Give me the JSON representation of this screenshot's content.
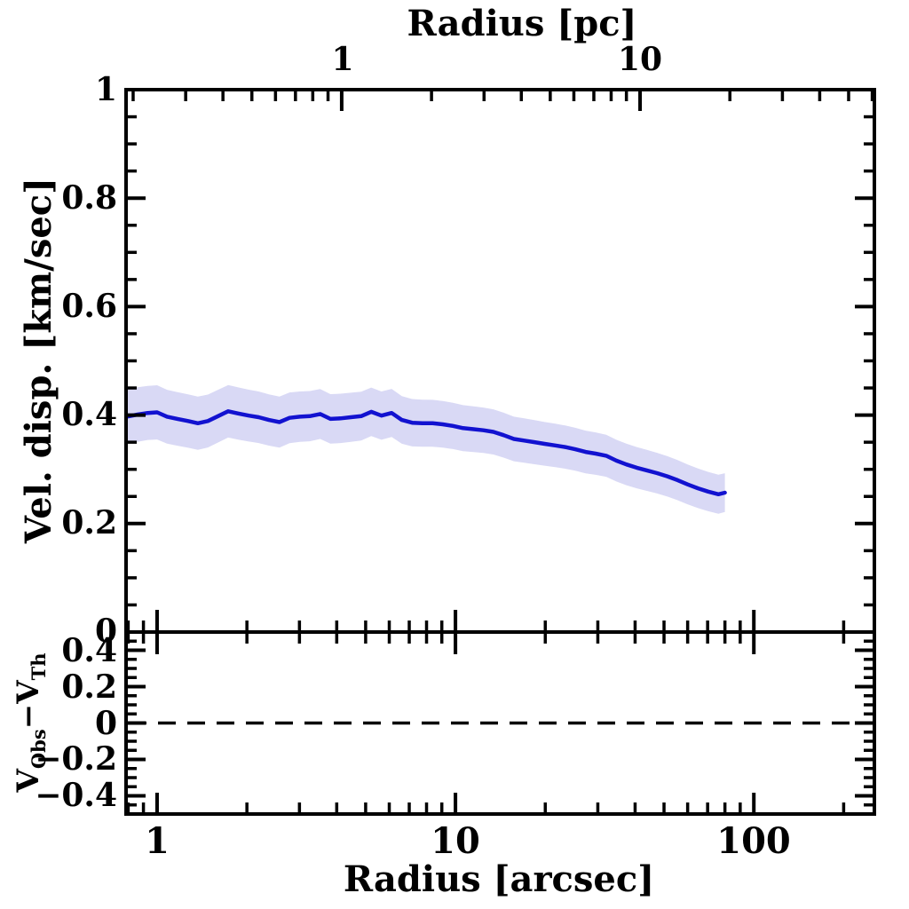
{
  "figure": {
    "background": "#ffffff",
    "frame_color": "#000000",
    "accent_line_color": "#1212d0",
    "band_color": "#d9d9f5",
    "zero_line_color": "#000000"
  },
  "top_axis": {
    "title": "Radius [pc]",
    "tick_labels": [
      "1",
      "10"
    ]
  },
  "bottom_axis": {
    "title": "Radius [arcsec]",
    "tick_labels": [
      "1",
      "10",
      "100"
    ]
  },
  "left_axis_top_panel": {
    "title": "Vel. disp. [km/sec]",
    "tick_labels": [
      "1",
      "0.8",
      "0.6",
      "0.4",
      "0.2",
      "0"
    ]
  },
  "left_axis_bottom_panel": {
    "title_parts": {
      "v1": "V",
      "sub1": "Obs",
      "minus": "−",
      "v2": "V",
      "sub2": "Th"
    },
    "tick_labels": [
      "0.4",
      "0.2",
      "0",
      "−0.2",
      "−0.4"
    ]
  },
  "chart_data": {
    "type": "line",
    "title": "",
    "xlabel_bottom": "Radius [arcsec]",
    "xlabel_top": "Radius [pc]",
    "x_scale": "log",
    "xlim_arcsec": [
      0.787,
      253.5
    ],
    "arcsec_per_pc": 4.156,
    "x_major_ticks_arcsec": [
      1,
      10,
      100
    ],
    "x_minor_ticks_arcsec": [
      0.8,
      0.9,
      2,
      3,
      4,
      5,
      6,
      7,
      8,
      9,
      20,
      30,
      40,
      50,
      60,
      70,
      80,
      90,
      200
    ],
    "x_major_ticks_pc": [
      1,
      10
    ],
    "x_minor_ticks_pc": [
      0.2,
      0.3,
      0.4,
      0.5,
      0.6,
      0.7,
      0.8,
      0.9,
      2,
      3,
      4,
      5,
      6,
      7,
      8,
      9,
      20,
      30,
      40,
      50,
      60
    ],
    "top_panel": {
      "ylabel": "Vel. disp. [km/sec]",
      "ylim": [
        0,
        1
      ],
      "y_major_ticks": [
        0.2,
        0.4,
        0.6,
        0.8
      ],
      "y_minor_step": 0.05,
      "grid": false,
      "legend": "none",
      "series": [
        {
          "name": "velocity-dispersion-profile",
          "style": "solid line with shaded 1-sigma band",
          "color": "#1212d0",
          "band_color": "#d9d9f5",
          "r_arcsec": [
            0.79,
            0.86,
            0.93,
            1.0,
            1.08,
            1.17,
            1.27,
            1.37,
            1.48,
            1.6,
            1.73,
            1.87,
            2.03,
            2.19,
            2.37,
            2.57,
            2.78,
            3.01,
            3.25,
            3.52,
            3.81,
            4.12,
            4.46,
            4.83,
            5.22,
            5.65,
            6.11,
            6.61,
            7.16,
            7.74,
            8.38,
            9.07,
            9.81,
            10.6,
            11.5,
            12.4,
            13.4,
            14.5,
            15.7,
            17.0,
            18.4,
            19.9,
            21.6,
            23.3,
            25.2,
            27.3,
            29.5,
            32.0,
            34.6,
            37.4,
            40.5,
            43.8,
            47.4,
            51.3,
            55.5,
            60.1,
            65.0,
            70.3,
            76.1,
            80.0
          ],
          "sigma_km_s": [
            0.397,
            0.401,
            0.404,
            0.405,
            0.397,
            0.393,
            0.389,
            0.385,
            0.389,
            0.398,
            0.407,
            0.403,
            0.399,
            0.396,
            0.391,
            0.387,
            0.395,
            0.397,
            0.398,
            0.402,
            0.393,
            0.394,
            0.396,
            0.398,
            0.406,
            0.399,
            0.404,
            0.391,
            0.386,
            0.385,
            0.385,
            0.383,
            0.38,
            0.376,
            0.374,
            0.372,
            0.369,
            0.363,
            0.356,
            0.353,
            0.35,
            0.347,
            0.344,
            0.341,
            0.337,
            0.332,
            0.329,
            0.325,
            0.316,
            0.309,
            0.303,
            0.298,
            0.293,
            0.287,
            0.28,
            0.272,
            0.265,
            0.259,
            0.254,
            0.257
          ],
          "sigma_err": [
            0.05,
            0.0502,
            0.0499,
            0.05,
            0.0497,
            0.0494,
            0.0493,
            0.0491,
            0.0488,
            0.0486,
            0.0484,
            0.0481,
            0.0478,
            0.0475,
            0.0473,
            0.047,
            0.0468,
            0.0465,
            0.0463,
            0.046,
            0.0457,
            0.0455,
            0.0452,
            0.045,
            0.0447,
            0.0445,
            0.0442,
            0.0439,
            0.0437,
            0.0434,
            0.0432,
            0.0429,
            0.0427,
            0.0424,
            0.0421,
            0.0419,
            0.0416,
            0.0414,
            0.0411,
            0.0409,
            0.0406,
            0.0403,
            0.0401,
            0.0398,
            0.0396,
            0.0393,
            0.0391,
            0.0388,
            0.0385,
            0.0383,
            0.038,
            0.0378,
            0.0375,
            0.0373,
            0.037,
            0.0367,
            0.0365,
            0.0362,
            0.036,
            0.0358
          ]
        }
      ]
    },
    "bottom_panel": {
      "ylabel": "V_Obs − V_Th",
      "ylim": [
        -0.5,
        0.5
      ],
      "y_major_ticks": [
        -0.4,
        -0.2,
        0,
        0.2,
        0.4
      ],
      "y_minor_step": 0.05,
      "grid": false,
      "zero_line": {
        "y": 0,
        "style": "dashed",
        "color": "#000000"
      },
      "series": []
    }
  }
}
